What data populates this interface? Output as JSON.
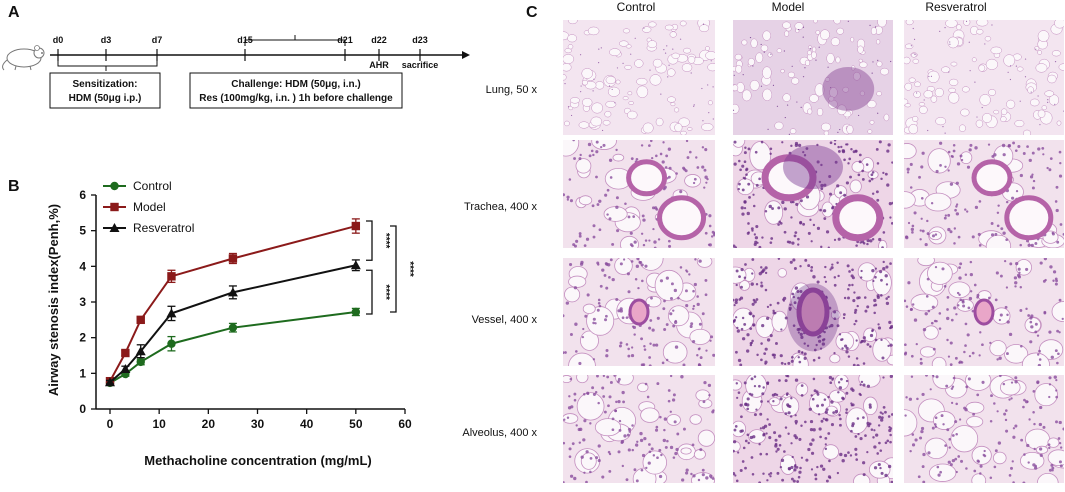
{
  "panel_a": {
    "letter": "A",
    "days": [
      {
        "label": "d0",
        "pos": 0
      },
      {
        "label": "d3",
        "pos": 3
      },
      {
        "label": "d7",
        "pos": 7
      },
      {
        "label": "d15",
        "pos": 15
      },
      {
        "label": "d21",
        "pos": 21
      },
      {
        "label": "d22",
        "pos": 22
      },
      {
        "label": "d23",
        "pos": 23
      }
    ],
    "ahr_label": "AHR",
    "sacrifice_label": "sacrifice",
    "sensitization_line1": "Sensitization:",
    "sensitization_line2": "HDM (50μg i.p.)",
    "challenge_line1": "Challenge: HDM (50μg, i.n.)",
    "challenge_line2": "Res (100mg/kg, i.n. ) 1h before challenge"
  },
  "panel_b": {
    "letter": "B"
  },
  "panel_c": {
    "letter": "C",
    "columns": [
      "Control",
      "Model",
      "Resveratrol"
    ],
    "rows": [
      "Lung, 50 x",
      "Trachea, 400 x",
      "Vessel, 400 x",
      "Alveolus, 400 x"
    ]
  },
  "chart_data": {
    "type": "line",
    "xlabel": "Methacholine concentration (mg/mL)",
    "ylabel": "Airway stenosis index(Penh,%)",
    "xlim": [
      0,
      60
    ],
    "ylim": [
      0,
      6
    ],
    "xticks": [
      0,
      10,
      20,
      30,
      40,
      50,
      60
    ],
    "yticks": [
      0,
      1,
      2,
      3,
      4,
      5,
      6
    ],
    "x": [
      0,
      3.125,
      6.25,
      12.5,
      25,
      50
    ],
    "legend_position": "top-left",
    "series": [
      {
        "name": "Control",
        "color": "#1e6b1e",
        "marker": "circle",
        "values": [
          0.73,
          0.98,
          1.32,
          1.83,
          2.28,
          2.72
        ],
        "errors": [
          0.05,
          0.06,
          0.08,
          0.2,
          0.12,
          0.1
        ]
      },
      {
        "name": "Model",
        "color": "#8b1a1a",
        "marker": "square",
        "values": [
          0.78,
          1.57,
          2.5,
          3.72,
          4.22,
          5.13
        ],
        "errors": [
          0.05,
          0.07,
          0.08,
          0.17,
          0.14,
          0.2
        ]
      },
      {
        "name": "Resveratrol",
        "color": "#111111",
        "marker": "triangle",
        "values": [
          0.75,
          1.12,
          1.62,
          2.68,
          3.27,
          4.03
        ],
        "errors": [
          0.05,
          0.08,
          0.18,
          0.2,
          0.18,
          0.15
        ]
      }
    ],
    "significance": [
      {
        "label": "****",
        "between": [
          "Model",
          "Resveratrol"
        ]
      },
      {
        "label": "****",
        "between": [
          "Resveratrol",
          "Control"
        ]
      },
      {
        "label": "****",
        "between": [
          "Model",
          "Control"
        ]
      }
    ]
  },
  "colors": {
    "tissue_pink": "#e9c6dc",
    "tissue_purple": "#8e4f9a",
    "background": "#f6eef4"
  }
}
